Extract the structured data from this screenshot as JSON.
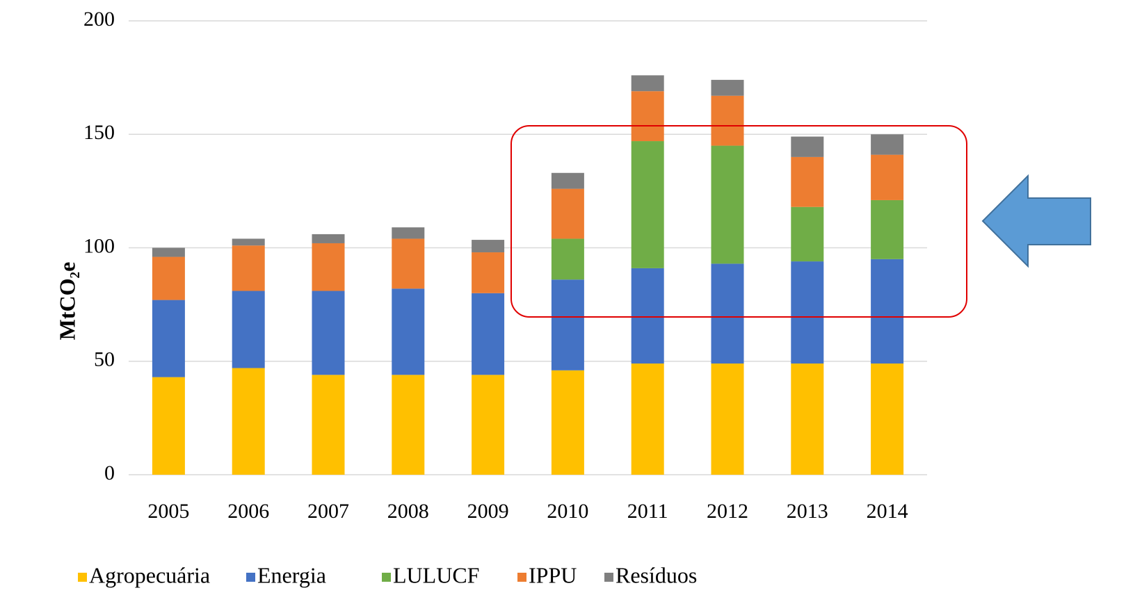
{
  "chart_data": {
    "type": "stacked_bar",
    "y_label": "MtCO₂e",
    "categories": [
      "2005",
      "2006",
      "2007",
      "2008",
      "2009",
      "2010",
      "2011",
      "2012",
      "2013",
      "2014"
    ],
    "series": [
      {
        "name": "Agropecuária",
        "color": "#ffc000",
        "values": [
          43,
          47,
          44,
          44,
          44,
          46,
          49,
          49,
          49,
          49
        ]
      },
      {
        "name": "Energia",
        "color": "#4472c4",
        "values": [
          34,
          34,
          37,
          38,
          36,
          40,
          42,
          44,
          45,
          46
        ]
      },
      {
        "name": "LULUCF",
        "color": "#70ad47",
        "values": [
          0,
          0,
          0,
          0,
          0,
          18,
          56,
          52,
          24,
          26
        ]
      },
      {
        "name": "IPPU",
        "color": "#ed7d31",
        "values": [
          19,
          20,
          21,
          22,
          18,
          22,
          22,
          22,
          22,
          20
        ]
      },
      {
        "name": "Resíduos",
        "color": "#7f7f7f",
        "values": [
          4,
          3,
          4,
          5,
          5.5,
          7,
          7,
          7,
          9,
          9
        ]
      }
    ],
    "ylim": [
      0,
      200
    ],
    "yticks": [
      0,
      50,
      100,
      150,
      200
    ],
    "grid": true,
    "legend": "bottom"
  }
}
